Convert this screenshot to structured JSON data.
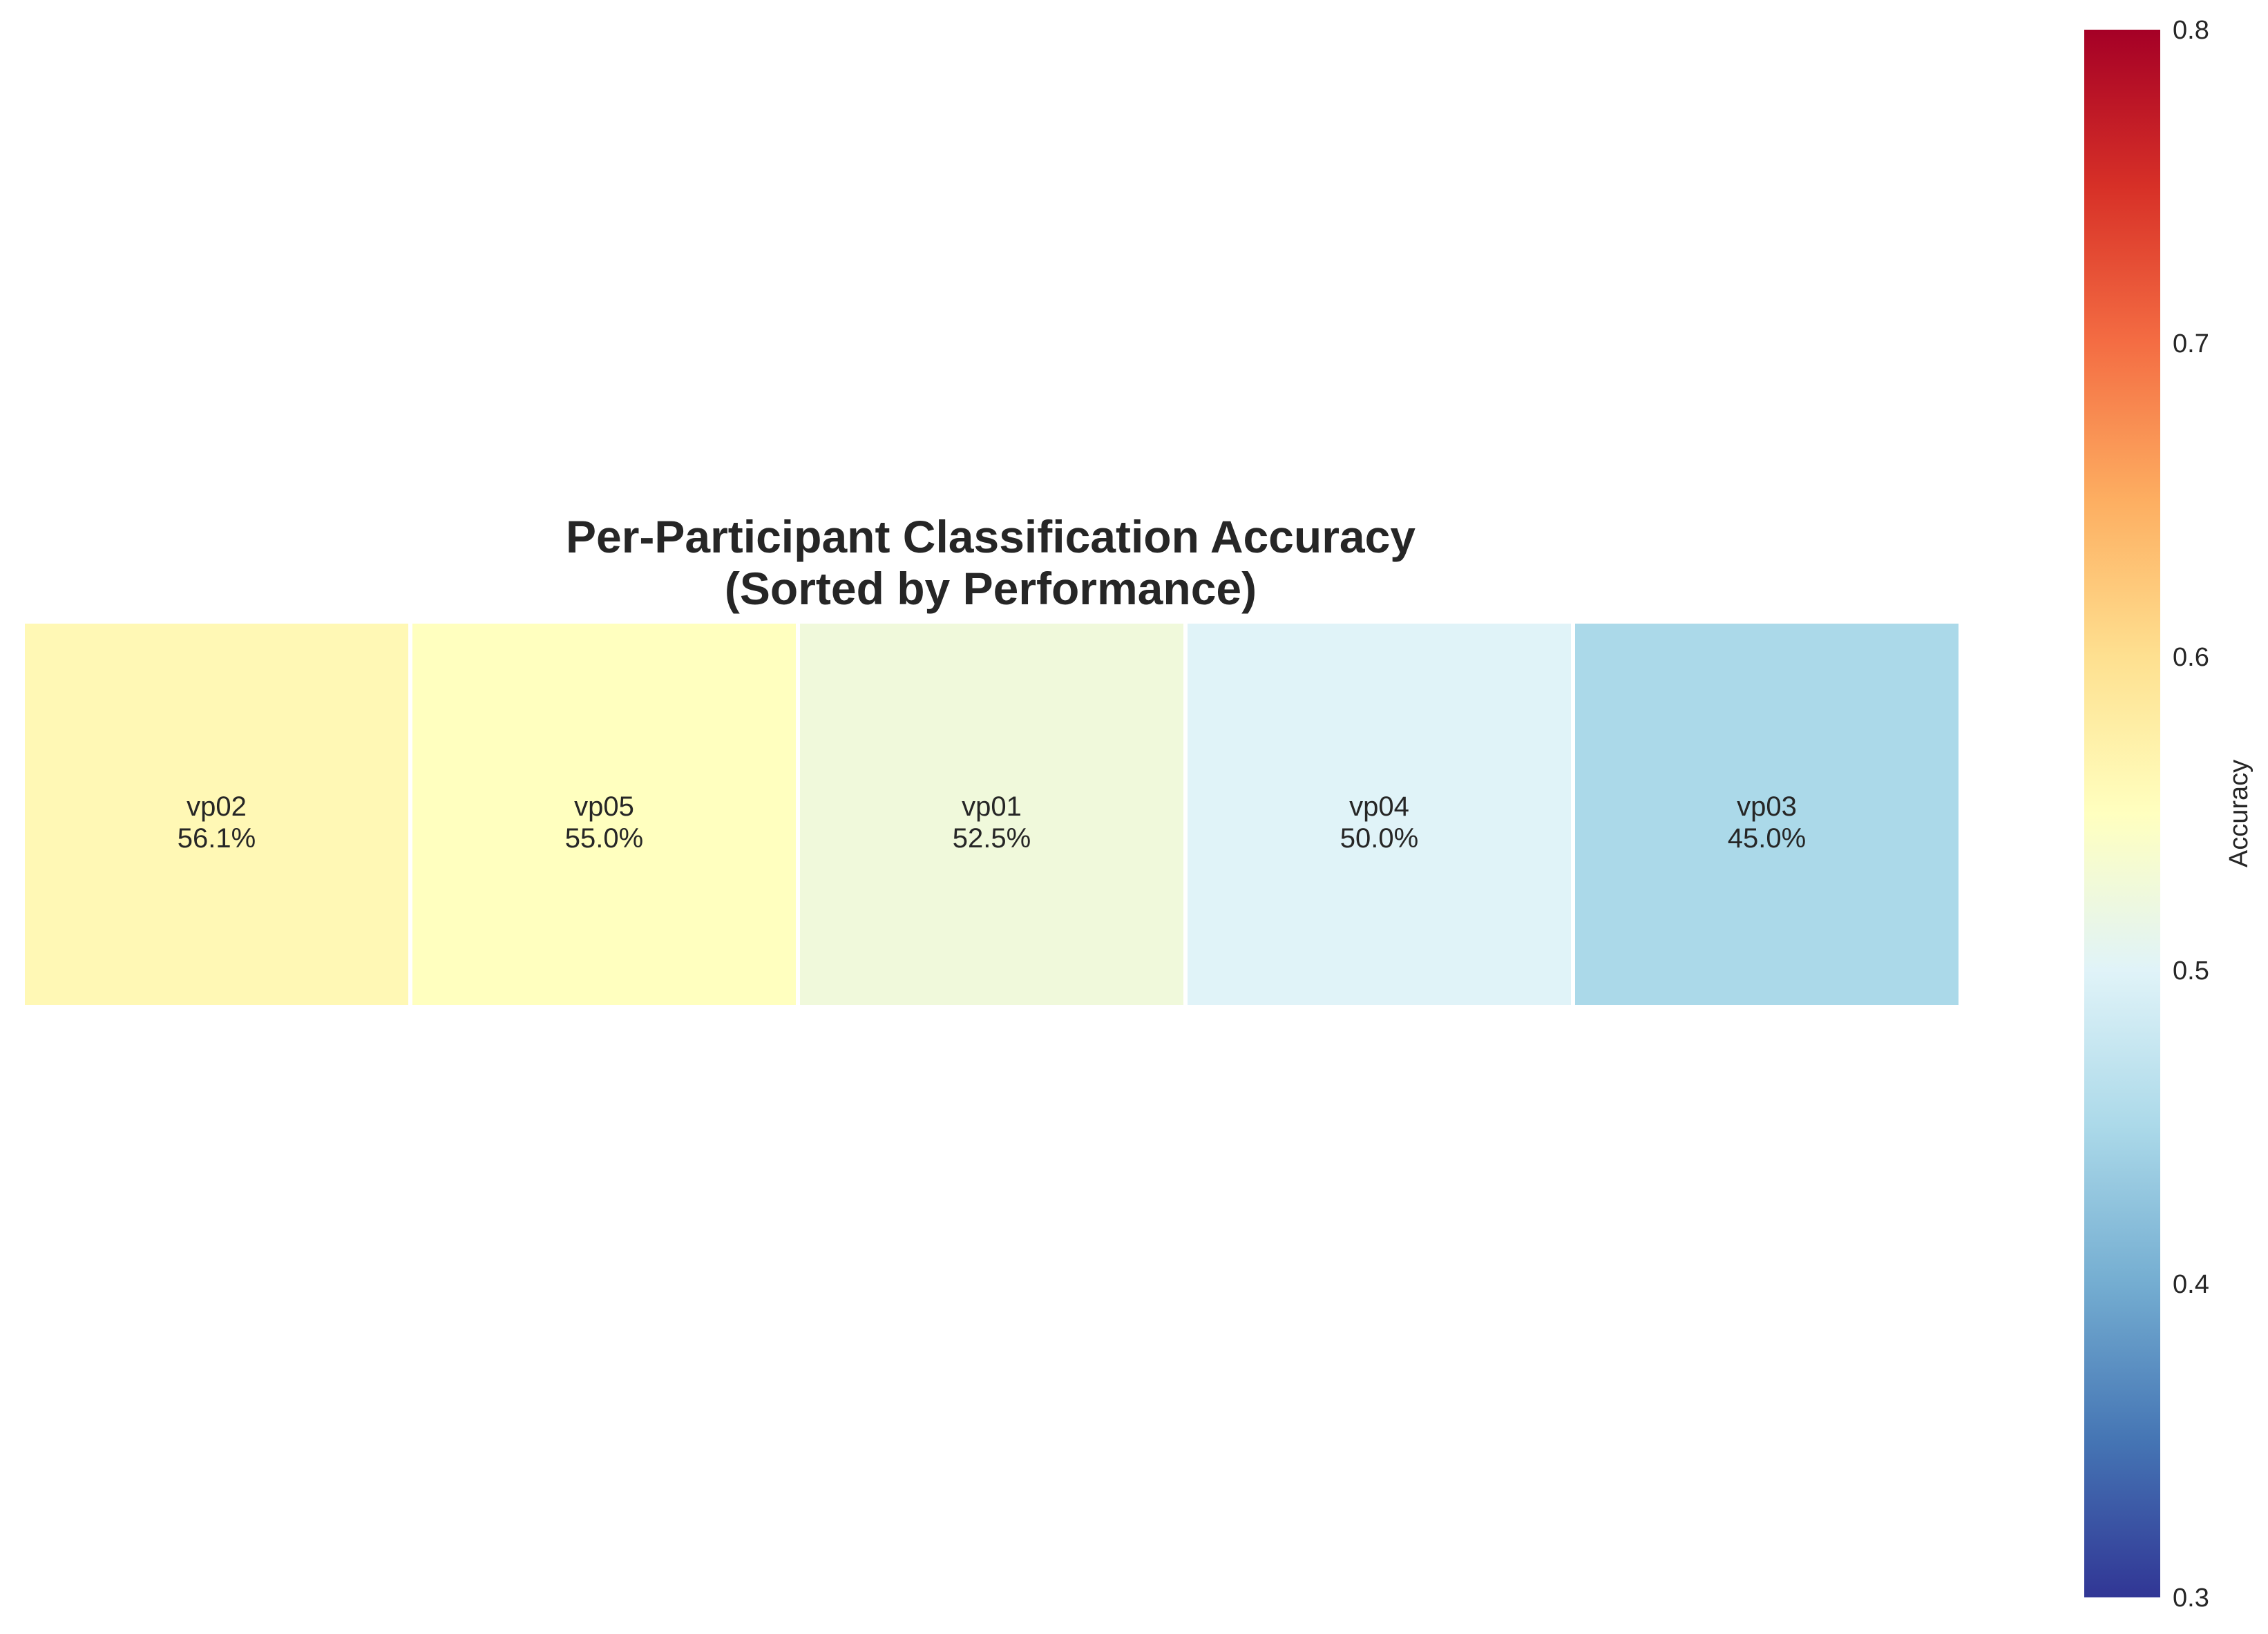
{
  "chart_data": {
    "type": "heatmap",
    "title": "Per-Participant Classification Accuracy",
    "subtitle": "(Sorted by Performance)",
    "cells": [
      {
        "participant": "vp02",
        "accuracy": 0.561,
        "label": "56.1%"
      },
      {
        "participant": "vp05",
        "accuracy": 0.55,
        "label": "55.0%"
      },
      {
        "participant": "vp01",
        "accuracy": 0.525,
        "label": "52.5%"
      },
      {
        "participant": "vp04",
        "accuracy": 0.5,
        "label": "50.0%"
      },
      {
        "participant": "vp03",
        "accuracy": 0.45,
        "label": "45.0%"
      }
    ],
    "colorbar": {
      "label": "Accuracy",
      "vmin": 0.3,
      "vmax": 0.8,
      "ticks": [
        "0.3",
        "0.4",
        "0.5",
        "0.6",
        "0.7",
        "0.8"
      ],
      "colormap": "RdYlBu_r"
    },
    "grid": false,
    "legend": "colorbar-right"
  }
}
